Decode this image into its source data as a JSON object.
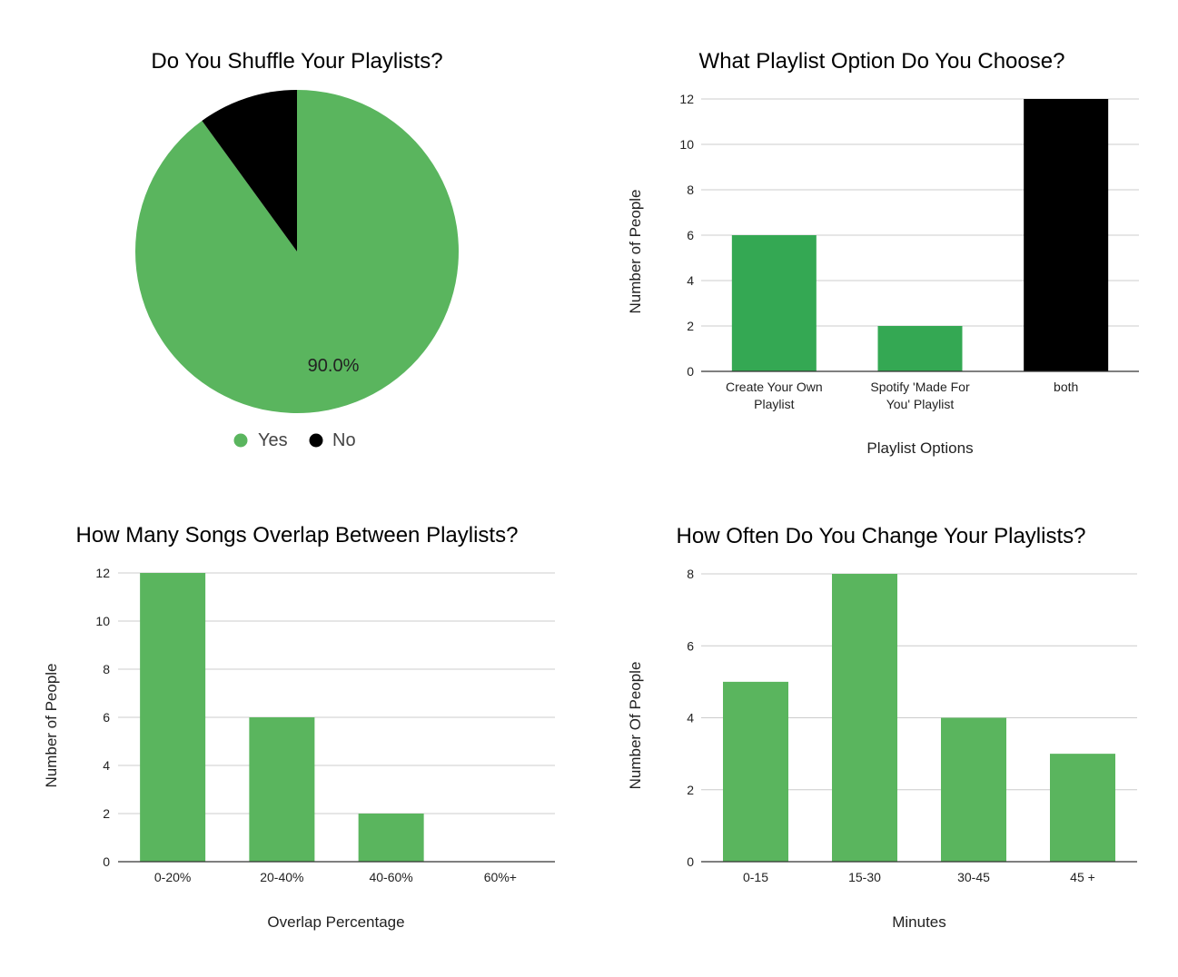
{
  "chart_data": [
    {
      "type": "pie",
      "title": "Do You Shuffle Your Playlists?",
      "labels": [
        "Yes",
        "No"
      ],
      "values": [
        90,
        10
      ],
      "colors": [
        "#5ab55e",
        "#000000"
      ],
      "data_labels": [
        "90.0%",
        ""
      ],
      "legend": "bottom"
    },
    {
      "type": "bar",
      "title": "What Playlist Option Do You Choose?",
      "categories": [
        "Create Your Own Playlist",
        "Spotify 'Made For You' Playlist",
        "both"
      ],
      "category_lines": [
        [
          "Create Your Own",
          "Playlist"
        ],
        [
          "Spotify 'Made For",
          "You' Playlist"
        ],
        [
          "both"
        ]
      ],
      "values": [
        6,
        2,
        12
      ],
      "colors": [
        "#34a853",
        "#34a853",
        "#000000"
      ],
      "xlabel": "Playlist Options",
      "ylabel": "Number of People",
      "ylim": [
        0,
        12
      ],
      "yticks": [
        "0",
        "2",
        "4",
        "6",
        "8",
        "10",
        "12"
      ],
      "grid": true
    },
    {
      "type": "bar",
      "title": "How Many Songs Overlap Between Playlists?",
      "categories": [
        "0-20%",
        "20-40%",
        "40-60%",
        "60%+"
      ],
      "category_lines": [
        [
          "0-20%"
        ],
        [
          "20-40%"
        ],
        [
          "40-60%"
        ],
        [
          "60%+"
        ]
      ],
      "values": [
        12,
        6,
        2,
        0
      ],
      "colors": [
        "#5ab55e",
        "#5ab55e",
        "#5ab55e",
        "#5ab55e"
      ],
      "xlabel": "Overlap Percentage",
      "ylabel": "Number of People",
      "ylim": [
        0,
        12
      ],
      "yticks": [
        "0",
        "2",
        "4",
        "6",
        "8",
        "10",
        "12"
      ],
      "grid": true
    },
    {
      "type": "bar",
      "title": "How Often Do You Change Your Playlists?",
      "categories": [
        "0-15",
        "15-30",
        "30-45",
        "45 +"
      ],
      "category_lines": [
        [
          "0-15"
        ],
        [
          "15-30"
        ],
        [
          "30-45"
        ],
        [
          "45 +"
        ]
      ],
      "values": [
        5,
        8,
        4,
        3
      ],
      "colors": [
        "#5ab55e",
        "#5ab55e",
        "#5ab55e",
        "#5ab55e"
      ],
      "xlabel": "Minutes",
      "ylabel": "Number Of People",
      "ylim": [
        0,
        8
      ],
      "yticks": [
        "0",
        "2",
        "4",
        "6",
        "8"
      ],
      "grid": true
    }
  ]
}
